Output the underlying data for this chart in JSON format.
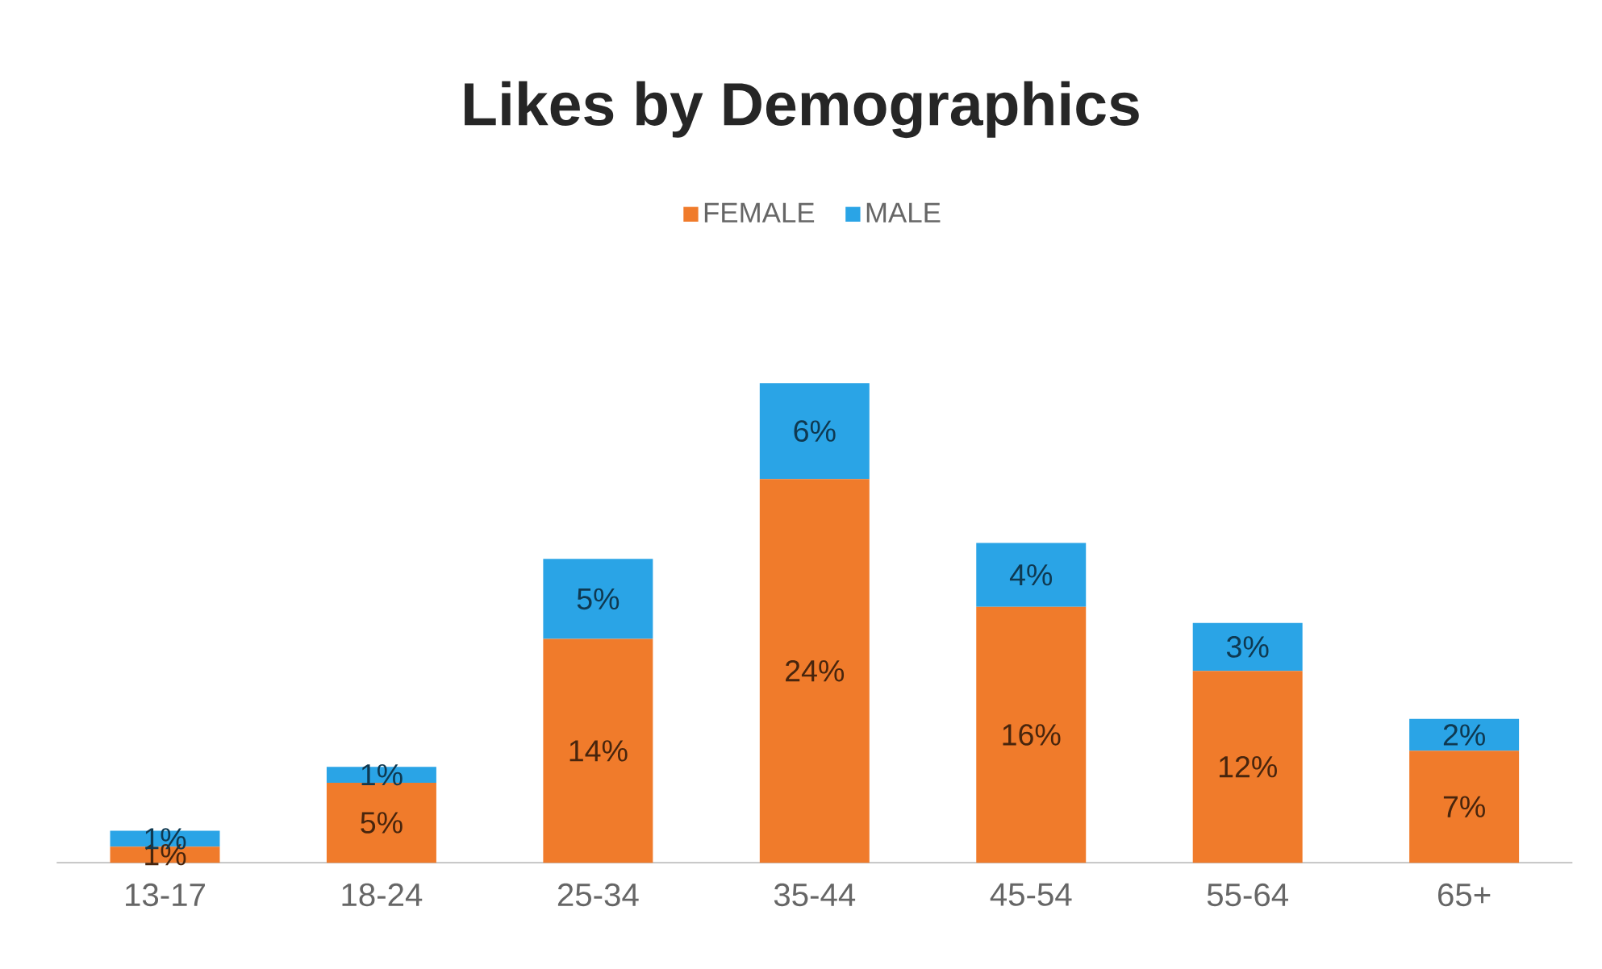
{
  "chart_data": {
    "type": "bar",
    "title": "Likes by Demographics",
    "stacked": true,
    "legend": "top",
    "categories": [
      "13-17",
      "18-24",
      "25-34",
      "35-44",
      "45-54",
      "55-64",
      "65+"
    ],
    "series": [
      {
        "name": "FEMALE",
        "color": "#f07b2b",
        "values": [
          1,
          5,
          14,
          24,
          16,
          12,
          7
        ],
        "value_labels": [
          "1%",
          "5%",
          "14%",
          "24%",
          "16%",
          "12%",
          "7%"
        ]
      },
      {
        "name": "MALE",
        "color": "#2aa4e6",
        "values": [
          1,
          1,
          5,
          6,
          4,
          3,
          2
        ],
        "value_labels": [
          "1%",
          "1%",
          "5%",
          "6%",
          "4%",
          "3%",
          "2%"
        ]
      }
    ]
  }
}
